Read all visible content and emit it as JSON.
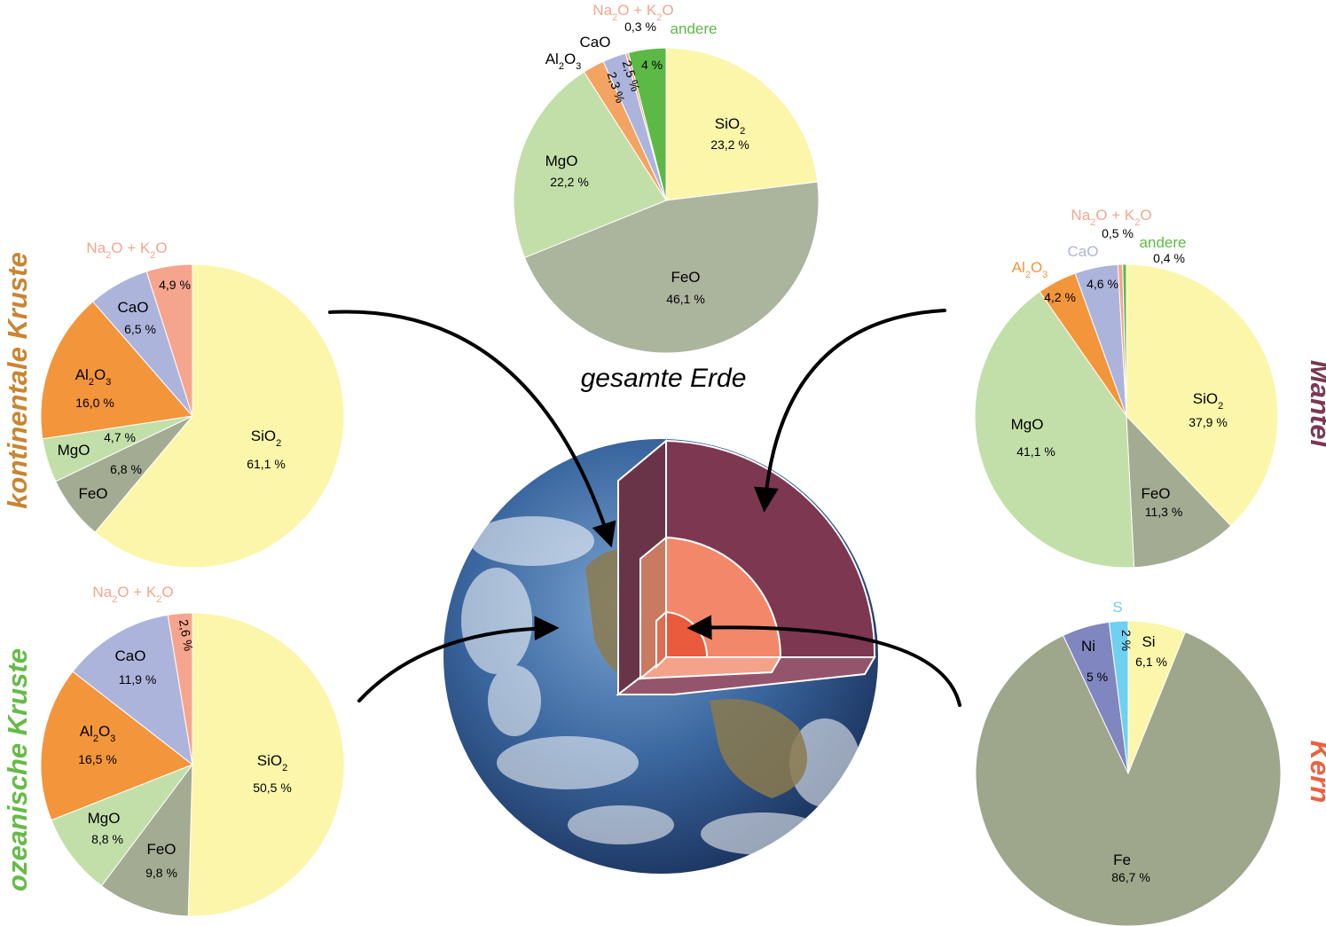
{
  "center_title": "gesamte Erde",
  "chart_data": [
    {
      "id": "gesamte-erde",
      "type": "pie",
      "title": "",
      "slices": [
        {
          "name": "SiO2",
          "value": 23.2,
          "label": "23,2 %",
          "color": "#fbf6aa"
        },
        {
          "name": "FeO",
          "value": 46.1,
          "label": "46,1 %",
          "color": "#abb49d"
        },
        {
          "name": "MgO",
          "value": 22.2,
          "label": "22,2 %",
          "color": "#c2dfaa"
        },
        {
          "name": "Al2O3",
          "value": 2.3,
          "label": "2,3 %",
          "color": "#f3a362"
        },
        {
          "name": "CaO",
          "value": 2.5,
          "label": "2,5 %",
          "color": "#adb4dc"
        },
        {
          "name": "Na2O + K2O",
          "value": 0.3,
          "label": "0,3 %",
          "color": "#f5a58e"
        },
        {
          "name": "andere",
          "value": 4.0,
          "label": "4 %",
          "color": "#5cb946"
        }
      ]
    },
    {
      "id": "kontinentale-kruste",
      "type": "pie",
      "title": "kontinentale Kruste",
      "title_color": "#c98532",
      "slices": [
        {
          "name": "SiO2",
          "value": 61.1,
          "label": "61,1 %",
          "color": "#fbf6aa"
        },
        {
          "name": "FeO",
          "value": 6.8,
          "label": "6,8 %",
          "color": "#a3ab92"
        },
        {
          "name": "MgO",
          "value": 4.7,
          "label": "4,7 %",
          "color": "#c2dfaa"
        },
        {
          "name": "Al2O3",
          "value": 16.0,
          "label": "16,0 %",
          "color": "#f3953a"
        },
        {
          "name": "CaO",
          "value": 6.5,
          "label": "6,5 %",
          "color": "#adb4dc"
        },
        {
          "name": "Na2O + K2O",
          "value": 4.9,
          "label": "4,9 %",
          "color": "#f5a58e"
        }
      ]
    },
    {
      "id": "ozeanische-kruste",
      "type": "pie",
      "title": "ozeanische Kruste",
      "title_color": "#66bb48",
      "slices": [
        {
          "name": "SiO2",
          "value": 50.5,
          "label": "50,5 %",
          "color": "#fbf6aa"
        },
        {
          "name": "FeO",
          "value": 9.8,
          "label": "9,8 %",
          "color": "#a3ab92"
        },
        {
          "name": "MgO",
          "value": 8.8,
          "label": "8,8 %",
          "color": "#c2dfaa"
        },
        {
          "name": "Al2O3",
          "value": 16.5,
          "label": "16,5 %",
          "color": "#f3953a"
        },
        {
          "name": "CaO",
          "value": 11.9,
          "label": "11,9 %",
          "color": "#adb4dc"
        },
        {
          "name": "Na2O + K2O",
          "value": 2.6,
          "label": "2,6 %",
          "color": "#f5a58e"
        }
      ]
    },
    {
      "id": "mantel",
      "type": "pie",
      "title": "Mantel",
      "title_color": "#7d3751",
      "slices": [
        {
          "name": "SiO2",
          "value": 37.9,
          "label": "37,9 %",
          "color": "#fbf6aa"
        },
        {
          "name": "FeO",
          "value": 11.3,
          "label": "11,3 %",
          "color": "#a3ab92"
        },
        {
          "name": "MgO",
          "value": 41.1,
          "label": "41,1 %",
          "color": "#c2dfaa"
        },
        {
          "name": "Al2O3",
          "value": 4.2,
          "label": "4,2 %",
          "color": "#f3953a"
        },
        {
          "name": "CaO",
          "value": 4.6,
          "label": "4,6 %",
          "color": "#adb4dc"
        },
        {
          "name": "Na2O + K2O",
          "value": 0.5,
          "label": "0,5 %",
          "color": "#f5a58e"
        },
        {
          "name": "andere",
          "value": 0.4,
          "label": "0,4 %",
          "color": "#5cb946"
        }
      ]
    },
    {
      "id": "kern",
      "type": "pie",
      "title": "Kern",
      "title_color": "#ec6040",
      "slices": [
        {
          "name": "Si",
          "value": 6.1,
          "label": "6,1 %",
          "color": "#fbf6aa"
        },
        {
          "name": "Fe",
          "value": 86.7,
          "label": "86,7 %",
          "color": "#9ea68c"
        },
        {
          "name": "Ni",
          "value": 5.0,
          "label": "5 %",
          "color": "#8086bf"
        },
        {
          "name": "S",
          "value": 2.0,
          "label": "2 %",
          "color": "#6fd0f2"
        }
      ]
    }
  ],
  "colors": {
    "mantle": "#7d3751",
    "outer_core": "#f3876a",
    "inner_core": "#ea5a3c",
    "ocean": "#3f6ea5"
  }
}
